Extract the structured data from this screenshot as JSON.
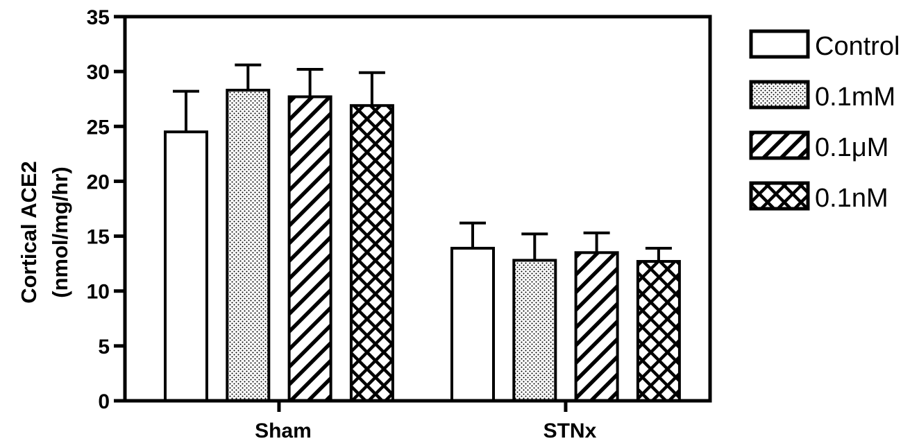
{
  "chart_data": {
    "type": "bar",
    "title": "",
    "xlabel": "",
    "ylabel": [
      "Cortical ACE2",
      "(nmol/mg/hr)"
    ],
    "ylim": [
      0,
      35
    ],
    "yticks": [
      0,
      5,
      10,
      15,
      20,
      25,
      30,
      35
    ],
    "ytick_labels": [
      "0",
      "5",
      "10",
      "15",
      "20",
      "25",
      "30",
      "35"
    ],
    "categories": [
      "Sham",
      "STNx"
    ],
    "series": [
      {
        "name": "Control",
        "pattern": "open",
        "values": [
          24.5,
          13.9
        ],
        "errors": [
          3.7,
          2.3
        ]
      },
      {
        "name": "0.1mM",
        "pattern": "dots",
        "values": [
          28.3,
          12.8
        ],
        "errors": [
          2.3,
          2.4
        ]
      },
      {
        "name": "0.1μM",
        "pattern": "diagonal",
        "values": [
          27.7,
          13.5
        ],
        "errors": [
          2.5,
          1.8
        ]
      },
      {
        "name": "0.1nM",
        "pattern": "crosshatch",
        "values": [
          26.9,
          12.7
        ],
        "errors": [
          3.0,
          1.2
        ]
      }
    ],
    "error_bars": "upper",
    "legend_position": "right",
    "grid": false,
    "colors": {
      "stroke": "#000000",
      "fill": "#ffffff"
    }
  }
}
